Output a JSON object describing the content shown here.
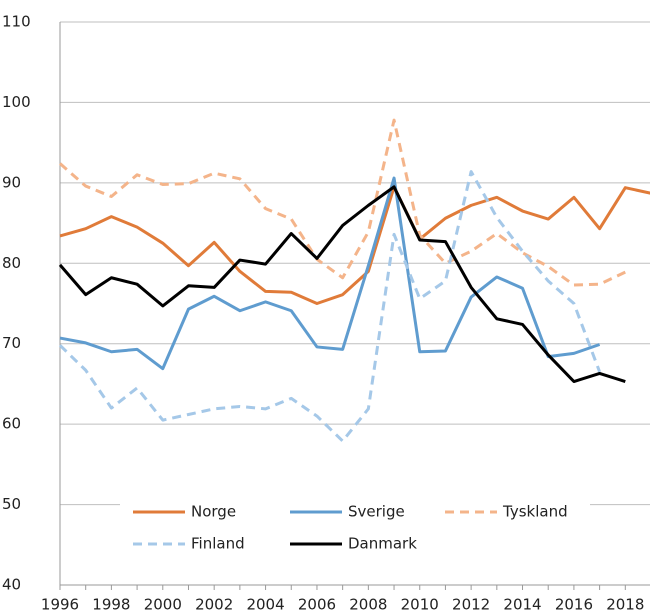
{
  "chart_data": {
    "type": "line",
    "x": [
      1996,
      1997,
      1998,
      1999,
      2000,
      2001,
      2002,
      2003,
      2004,
      2005,
      2006,
      2007,
      2008,
      2009,
      2010,
      2011,
      2012,
      2013,
      2014,
      2015,
      2016,
      2017,
      2018,
      2019
    ],
    "xlim": [
      1996,
      2019
    ],
    "xticks": [
      1996,
      1998,
      2000,
      2002,
      2004,
      2006,
      2008,
      2010,
      2012,
      2014,
      2016,
      2018
    ],
    "ylim": [
      40,
      110
    ],
    "yticks": [
      40,
      50,
      60,
      70,
      80,
      90,
      100,
      110
    ],
    "grid": true,
    "legend": "bottom",
    "series": [
      {
        "name": "Norge",
        "color": "#e07b39",
        "dashed": false,
        "values": [
          83.4,
          84.3,
          85.8,
          84.5,
          82.5,
          79.7,
          82.6,
          79.0,
          76.5,
          76.4,
          75.0,
          76.1,
          79.0,
          89.5,
          83.0,
          85.6,
          87.2,
          88.2,
          86.5,
          85.5,
          88.2,
          84.3,
          89.4,
          88.7
        ]
      },
      {
        "name": "Sverige",
        "color": "#5f9ccf",
        "dashed": false,
        "values": [
          70.7,
          70.1,
          69.0,
          69.3,
          66.9,
          74.3,
          75.9,
          74.1,
          75.2,
          74.1,
          69.6,
          69.3,
          79.7,
          90.6,
          69.0,
          69.1,
          75.8,
          78.3,
          76.9,
          68.4,
          68.8,
          69.9,
          null,
          null
        ]
      },
      {
        "name": "Tyskland",
        "color": "#f4b48a",
        "dashed": true,
        "values": [
          92.4,
          89.6,
          88.3,
          91.0,
          89.8,
          89.9,
          91.2,
          90.5,
          86.8,
          85.5,
          80.5,
          78.2,
          83.9,
          97.8,
          83.5,
          80.0,
          81.5,
          83.7,
          81.3,
          79.6,
          77.3,
          77.4,
          78.9,
          null
        ]
      },
      {
        "name": "Finland",
        "color": "#a5c8e8",
        "dashed": true,
        "values": [
          69.8,
          66.7,
          62.0,
          64.5,
          60.5,
          61.2,
          61.9,
          62.2,
          61.9,
          63.2,
          61.0,
          57.9,
          61.9,
          83.6,
          75.6,
          77.8,
          91.4,
          85.7,
          81.5,
          77.8,
          75.0,
          66.5,
          null,
          null
        ]
      },
      {
        "name": "Danmark",
        "color": "#000000",
        "dashed": false,
        "values": [
          79.8,
          76.1,
          78.2,
          77.4,
          74.7,
          77.2,
          77.0,
          80.4,
          79.9,
          83.7,
          80.6,
          84.7,
          87.2,
          89.5,
          82.9,
          82.7,
          77.0,
          73.1,
          72.4,
          68.6,
          65.3,
          66.3,
          65.3,
          null
        ]
      }
    ]
  }
}
